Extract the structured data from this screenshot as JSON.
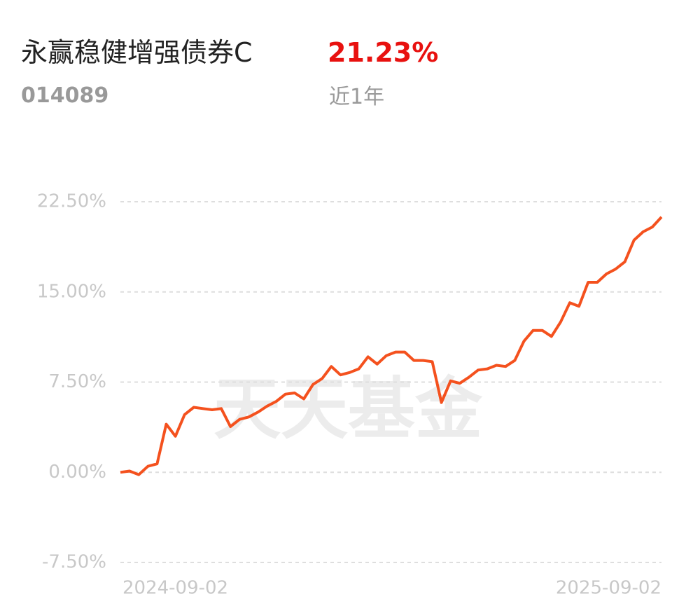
{
  "chart_data": {
    "type": "line",
    "title": "永赢稳健增强债券C",
    "return": "21.23%",
    "code": "014089",
    "period": "近1年",
    "watermark": "天天基金",
    "categories": [
      "2024-09-02",
      null,
      null,
      null,
      null,
      null,
      null,
      null,
      null,
      null,
      null,
      null,
      null,
      null,
      null,
      null,
      null,
      null,
      null,
      null,
      null,
      null,
      null,
      null,
      null,
      null,
      null,
      null,
      null,
      null,
      null,
      null,
      null,
      null,
      null,
      null,
      null,
      null,
      null,
      null,
      null,
      null,
      null,
      null,
      null,
      null,
      null,
      null,
      null,
      null,
      null,
      null,
      null,
      null,
      null,
      null,
      null,
      null,
      null,
      "2025-09-02"
    ],
    "series": [
      {
        "color": "#f4511e",
        "values": [
          0.0,
          0.1,
          -0.2,
          0.5,
          0.7,
          4.0,
          3.0,
          4.8,
          5.4,
          5.3,
          5.2,
          5.3,
          3.8,
          4.4,
          4.6,
          5.0,
          5.5,
          5.9,
          6.5,
          6.6,
          6.1,
          7.3,
          7.8,
          8.8,
          8.1,
          8.3,
          8.6,
          9.6,
          9.0,
          9.7,
          10.0,
          10.0,
          9.3,
          9.3,
          9.2,
          5.8,
          7.6,
          7.4,
          7.9,
          8.5,
          8.6,
          8.9,
          8.8,
          9.3,
          10.9,
          11.8,
          11.8,
          11.3,
          12.5,
          14.1,
          13.8,
          15.8,
          15.8,
          16.5,
          16.9,
          17.5,
          19.3,
          20.0,
          20.4,
          21.23
        ]
      }
    ],
    "ylim": [
      -7.5,
      22.5
    ],
    "yticks": [
      {
        "value": -7.5,
        "label": "-7.50%"
      },
      {
        "value": 0,
        "label": "0.00%"
      },
      {
        "value": 7.5,
        "label": "7.50%"
      },
      {
        "value": 15,
        "label": "15.00%"
      },
      {
        "value": 22.5,
        "label": "22.50%"
      }
    ],
    "grid": true
  }
}
